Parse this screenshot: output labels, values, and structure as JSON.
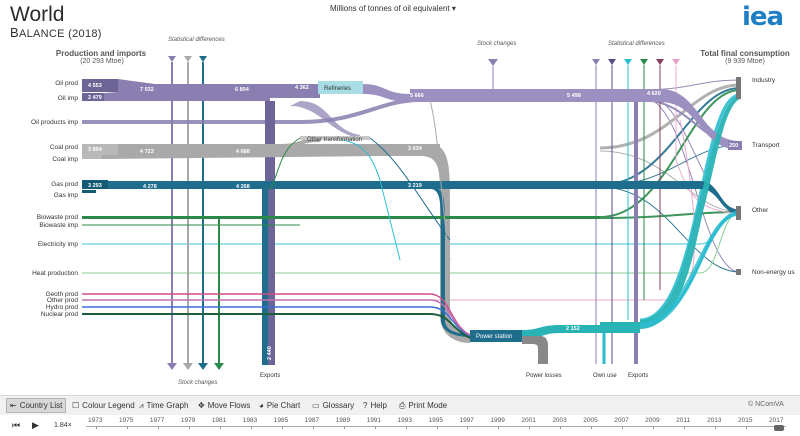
{
  "header": {
    "title": "World",
    "subtitle_prefix": "B",
    "subtitle_rest": "ALANCE",
    "year": "(2018)",
    "unit_selector": "Millions of tonnes of oil equivalent",
    "logo": "iea"
  },
  "headings": {
    "production": "Production and imports",
    "production_total": "(20 293 Mtoe)",
    "consumption": "Total final consumption",
    "consumption_total": "(9 939 Mtoe)",
    "stat_diff_left": "Statistical differences",
    "stock_changes_top": "Stock changes",
    "stat_diff_right": "Statistical differences",
    "stock_changes_bottom": "Stock changes"
  },
  "sources": [
    {
      "label": "Oil prod",
      "value": "4 553"
    },
    {
      "label": "Oil imp",
      "value": "2 479"
    },
    {
      "label": "Oil products imp",
      "value": ""
    },
    {
      "label": "Coal prod",
      "value": "3 894"
    },
    {
      "label": "Coal imp",
      "value": ""
    },
    {
      "label": "Gas prod",
      "value": "3 293"
    },
    {
      "label": "Gas imp",
      "value": ""
    },
    {
      "label": "Biowaste prod",
      "value": ""
    },
    {
      "label": "Biowaste imp",
      "value": ""
    },
    {
      "label": "Electricity imp",
      "value": ""
    },
    {
      "label": "Heat production",
      "value": ""
    },
    {
      "label": "Geoth prod",
      "value": ""
    },
    {
      "label": "Other prod",
      "value": ""
    },
    {
      "label": "Hydro prod",
      "value": ""
    },
    {
      "label": "Nuclear prod",
      "value": ""
    }
  ],
  "flow_values": {
    "oil_mid1": "7 032",
    "oil_mid2": "6 804",
    "oil_refin": "4 362",
    "oil_after_ref": "5 666",
    "oil_right": "5 498",
    "oil_end": "4 620",
    "coal_mid1": "4 723",
    "coal_mid2": "4 688",
    "coal_right": "3 634",
    "gas_mid1": "4 278",
    "gas_mid2": "4 268",
    "gas_right": "3 219",
    "exports_vert": "2 440",
    "power_out": "2 152",
    "transport_val": "250"
  },
  "nodes": {
    "refineries": "Refineries",
    "other_transformation": "Other transformation",
    "power_station": "Power station",
    "exports_left": "Exports",
    "power_losses": "Power losses",
    "own_use": "Own use",
    "exports_right": "Exports"
  },
  "sinks": [
    "Industry",
    "Transport",
    "Other",
    "Non-energy us"
  ],
  "toolbar": {
    "country_list": "Country List",
    "colour_legend": "Colour Legend",
    "time_graph": "Time Graph",
    "move_flows": "Move Flows",
    "pie_chart": "Pie Chart",
    "glossary": "Glossary",
    "help": "Help",
    "print_mode": "Print Mode",
    "credit": "© NComVA"
  },
  "timeline": {
    "speed": "1.84×",
    "years": [
      "1973",
      "1975",
      "1977",
      "1979",
      "1981",
      "1983",
      "1985",
      "1987",
      "1989",
      "1991",
      "1993",
      "1995",
      "1997",
      "1999",
      "2001",
      "2003",
      "2005",
      "2007",
      "2009",
      "2011",
      "2013",
      "2015",
      "2017"
    ]
  },
  "colors": {
    "oil": "#8a7fb0",
    "oil_dark": "#6e6597",
    "coal": "#a9a9a9",
    "gas": "#1e6d8c",
    "biowaste": "#2a8a4a",
    "electricity": "#2bbdd0",
    "heat": "#7bc98a",
    "pink": "#e9a3c8",
    "power": "#29b3b5",
    "refinery_node": "#a8dde6",
    "losses": "#888888"
  }
}
